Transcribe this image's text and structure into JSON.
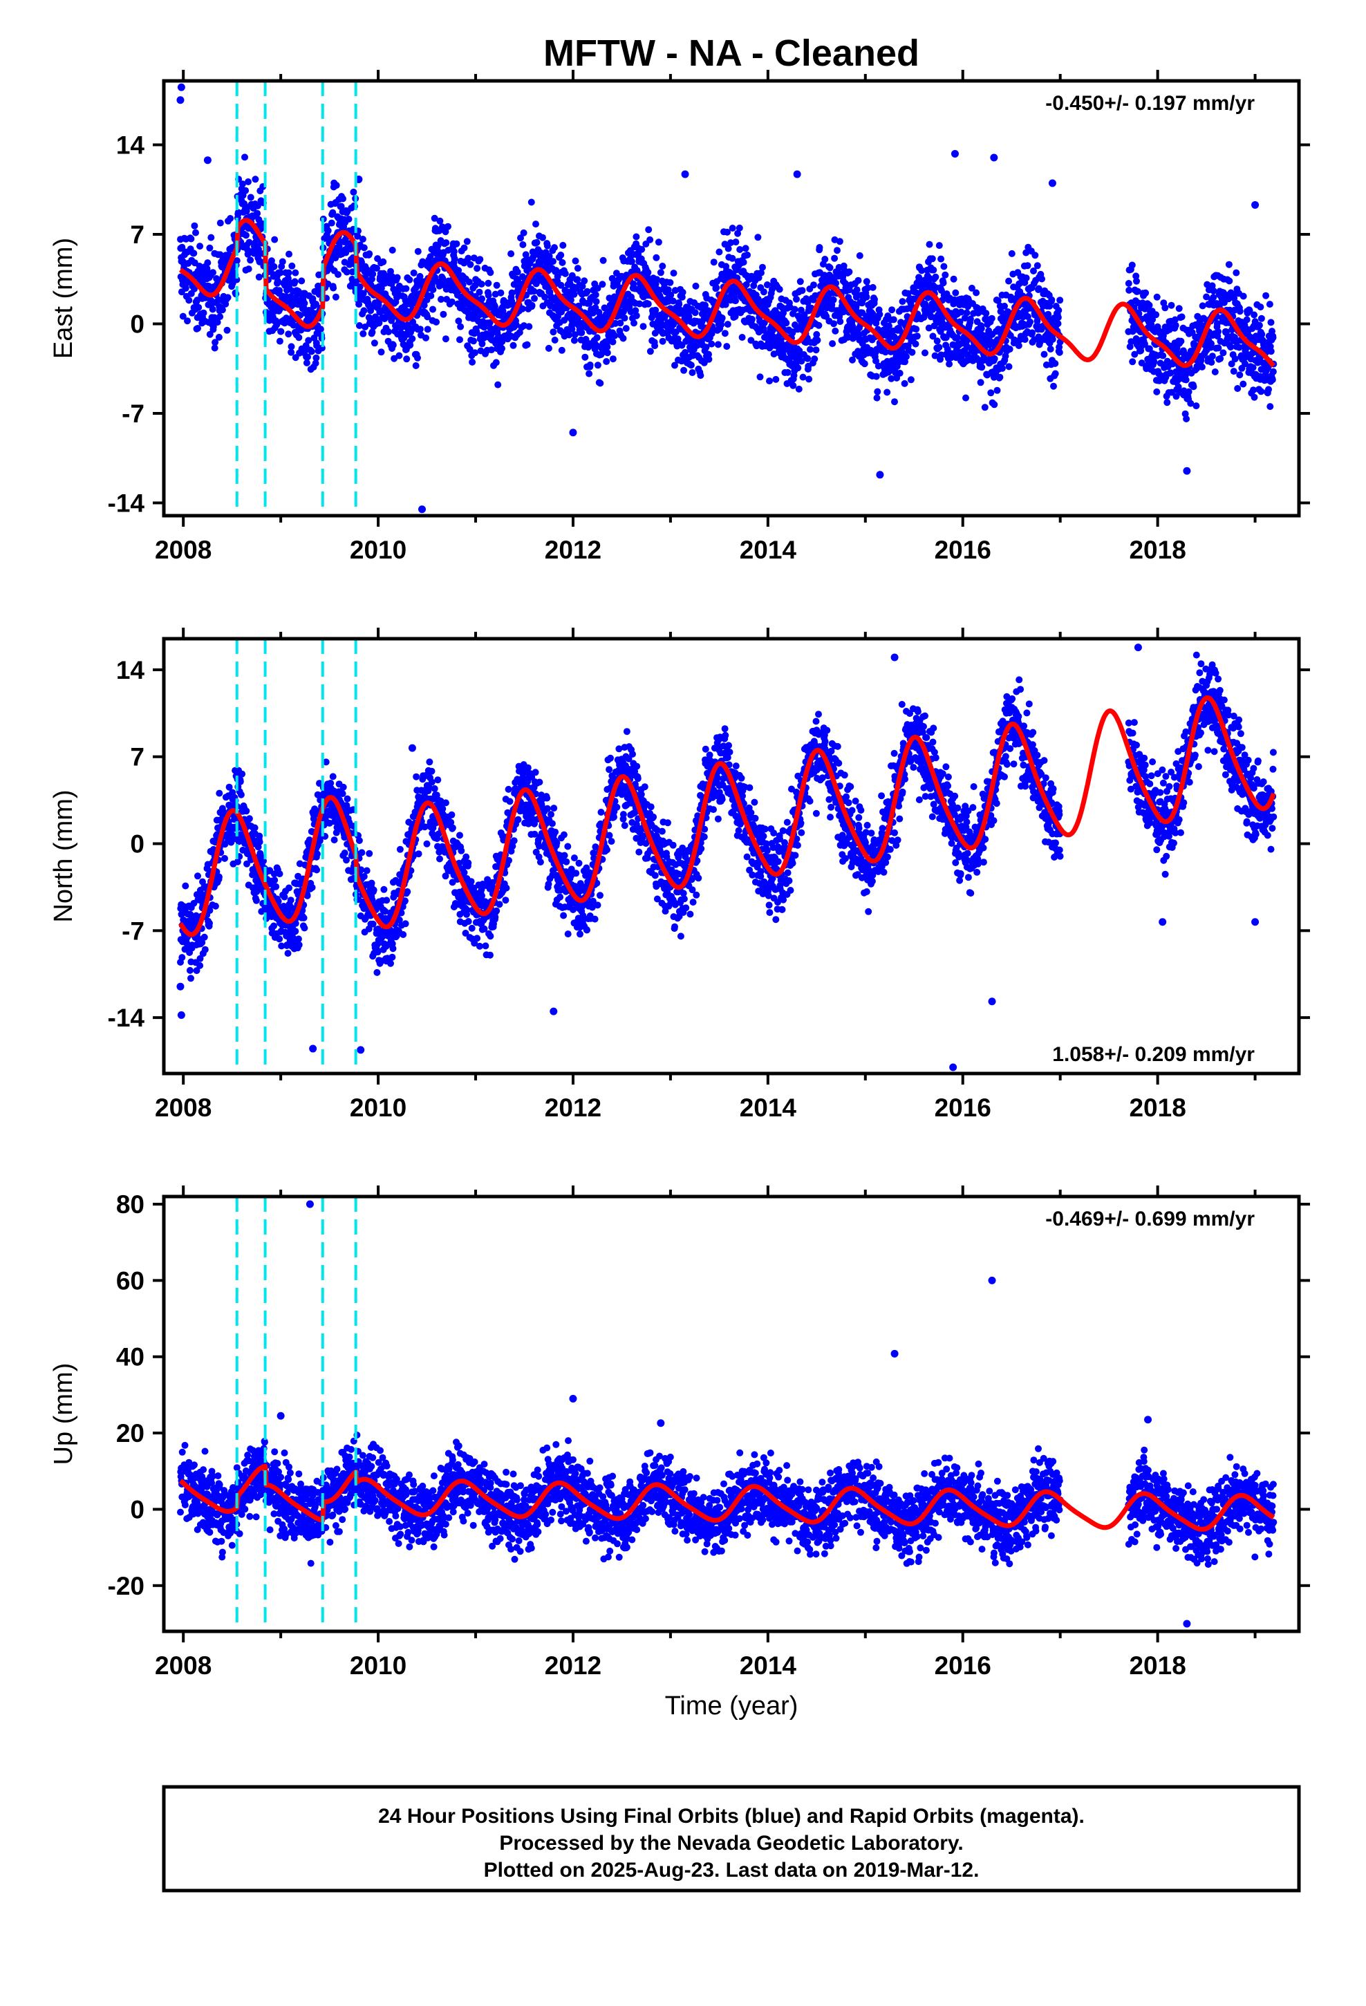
{
  "title": "MFTW  - NA - Cleaned",
  "colors": {
    "final_orbits": "#0000ff",
    "model_fit": "#ff0000",
    "offset_lines": "#00e5ee",
    "frame": "#000000"
  },
  "icons": {
    "data_point": "dot-icon"
  },
  "x_axis": {
    "label": "Time (year)",
    "ticks": [
      "2008",
      "2010",
      "2012",
      "2014",
      "2016",
      "2018"
    ],
    "range": [
      2007.8,
      2019.45
    ]
  },
  "offset_epochs": [
    2008.55,
    2008.84,
    2009.43,
    2009.77
  ],
  "footer": {
    "lines": [
      "24 Hour Positions Using Final Orbits (blue) and Rapid Orbits (magenta).",
      "Processed by the Nevada Geodetic Laboratory.",
      "Plotted on 2025-Aug-23. Last data on 2019-Mar-12."
    ]
  },
  "chart_data": [
    {
      "type": "scatter",
      "component": "east",
      "ylabel": "East (mm)",
      "ylim": [
        -15,
        19
      ],
      "yticks": [
        "14",
        "7",
        "0",
        "-7",
        "-14"
      ],
      "rate_text": "-0.450+/- 0.197 mm/yr",
      "rate_position": "top-right",
      "data_range": [
        2007.97,
        2019.19
      ],
      "gaps": [
        [
          2017.0,
          2017.7
        ]
      ],
      "model": {
        "offset": 4.5,
        "trend": -0.45,
        "annual_amplitude": 2.0,
        "annual_peak": 2008.7,
        "semiannual_amplitude": 0.6,
        "semiannual_peak": 2008.6,
        "steps": [
          1.5,
          -3.5,
          3.0,
          -2.0
        ]
      },
      "scatter": {
        "noise": 1.8
      },
      "outliers": [
        {
          "x": 2007.98,
          "y": 18.5
        },
        {
          "x": 2007.97,
          "y": 17.5
        },
        {
          "x": 2008.25,
          "y": 12.8
        },
        {
          "x": 2009.8,
          "y": 11.3
        },
        {
          "x": 2010.45,
          "y": -14.5
        },
        {
          "x": 2012.0,
          "y": -8.5
        },
        {
          "x": 2013.15,
          "y": 11.7
        },
        {
          "x": 2014.3,
          "y": 11.7
        },
        {
          "x": 2015.15,
          "y": -11.8
        },
        {
          "x": 2015.92,
          "y": 13.3
        },
        {
          "x": 2016.32,
          "y": 13.0
        },
        {
          "x": 2016.92,
          "y": 11.0
        },
        {
          "x": 2018.3,
          "y": -11.5
        },
        {
          "x": 2019.0,
          "y": 9.3
        }
      ]
    },
    {
      "type": "scatter",
      "component": "north",
      "ylabel": "North (mm)",
      "ylim": [
        -18.5,
        16.5
      ],
      "yticks": [
        "14",
        "7",
        "0",
        "-7",
        "-14"
      ],
      "rate_text": "1.058+/- 0.209 mm/yr",
      "rate_position": "bottom-right",
      "data_range": [
        2007.97,
        2019.19
      ],
      "gaps": [
        [
          2017.0,
          2017.7
        ]
      ],
      "model": {
        "offset": -2.9,
        "trend": 1.058,
        "annual_amplitude": 4.6,
        "annual_peak": 2008.54,
        "semiannual_amplitude": 0.7,
        "semiannual_peak": 2008.45,
        "steps": [
          0.0,
          0.0,
          0.0,
          -1.5
        ]
      },
      "scatter": {
        "noise": 1.6
      },
      "outliers": [
        {
          "x": 2007.97,
          "y": -11.5
        },
        {
          "x": 2007.98,
          "y": -13.8
        },
        {
          "x": 2009.33,
          "y": -16.5
        },
        {
          "x": 2009.82,
          "y": -16.6
        },
        {
          "x": 2010.35,
          "y": 7.7
        },
        {
          "x": 2011.8,
          "y": -13.5
        },
        {
          "x": 2015.3,
          "y": 15.0
        },
        {
          "x": 2015.9,
          "y": -18.0
        },
        {
          "x": 2016.3,
          "y": -12.7
        },
        {
          "x": 2017.8,
          "y": 15.8
        },
        {
          "x": 2018.05,
          "y": -6.3
        },
        {
          "x": 2019.0,
          "y": -6.3
        }
      ]
    },
    {
      "type": "scatter",
      "component": "up",
      "ylabel": "Up (mm)",
      "ylim": [
        -32,
        82
      ],
      "yticks": [
        "80",
        "60",
        "40",
        "20",
        "0",
        "-20"
      ],
      "rate_text": "-0.469+/- 0.699 mm/yr",
      "rate_position": "top-right",
      "data_range": [
        2007.97,
        2019.19
      ],
      "gaps": [
        [
          2017.0,
          2017.7
        ]
      ],
      "model": {
        "offset": 4.0,
        "trend": -0.469,
        "annual_amplitude": 4.3,
        "annual_peak": 2008.9,
        "semiannual_amplitude": 0.8,
        "semiannual_peak": 2008.8,
        "steps": [
          3.0,
          -5.0,
          5.0,
          -3.0
        ]
      },
      "scatter": {
        "noise": 4.5
      },
      "outliers": [
        {
          "x": 2009.3,
          "y": 80.0
        },
        {
          "x": 2016.3,
          "y": 60.0
        },
        {
          "x": 2015.3,
          "y": 40.8
        },
        {
          "x": 2012.0,
          "y": 29.0
        },
        {
          "x": 2009.0,
          "y": 24.5
        },
        {
          "x": 2018.3,
          "y": -30.0
        },
        {
          "x": 2012.9,
          "y": 22.6
        },
        {
          "x": 2017.9,
          "y": 23.5
        }
      ]
    }
  ]
}
